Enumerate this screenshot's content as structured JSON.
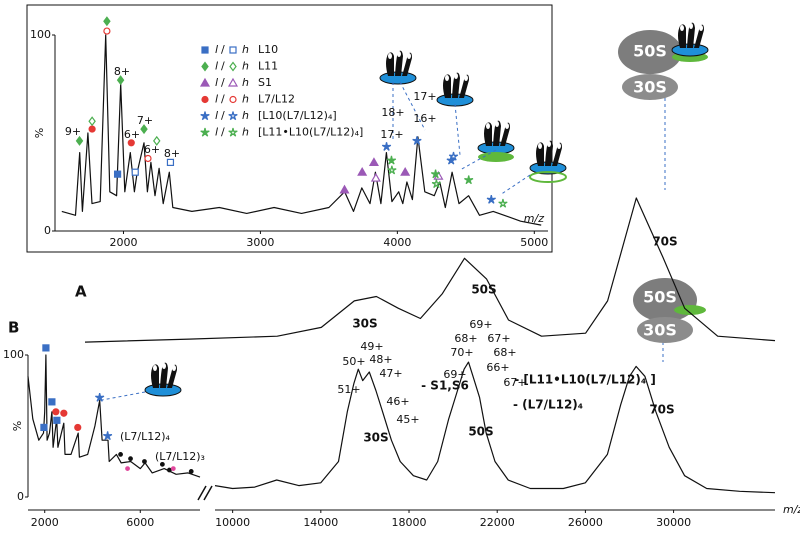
{
  "panel_labels": [
    "A",
    "B"
  ],
  "icons": [
    {
      "labels": [
        "50S",
        "30S"
      ]
    },
    {
      "labels": [
        "50S",
        "30S"
      ]
    }
  ],
  "chart_data": [
    {
      "type": "line",
      "x_label": "m/z",
      "y_label": "%",
      "xlim": [
        1500,
        5100
      ],
      "xticks": [
        2000,
        3000,
        4000,
        5000
      ],
      "ylim": [
        0,
        100
      ],
      "yticks": [
        0,
        100
      ],
      "color": "#111111",
      "x": [
        1550,
        1650,
        1680,
        1700,
        1740,
        1770,
        1830,
        1870,
        1900,
        1950,
        1980,
        2010,
        2050,
        2080,
        2100,
        2150,
        2175,
        2200,
        2230,
        2260,
        2290,
        2335,
        2360,
        2500,
        2700,
        2900,
        3100,
        3300,
        3500,
        3615,
        3680,
        3740,
        3800,
        3840,
        3880,
        3920,
        3960,
        4010,
        4040,
        4070,
        4110,
        4150,
        4200,
        4270,
        4310,
        4350,
        4400,
        4450,
        4520,
        4600,
        4700,
        4780,
        4900,
        5050
      ],
      "values": [
        10,
        8,
        40,
        10,
        50,
        14,
        15,
        100,
        20,
        18,
        75,
        20,
        40,
        20,
        30,
        45,
        20,
        35,
        18,
        32,
        14,
        30,
        12,
        10,
        12,
        9,
        12,
        9,
        12,
        20,
        10,
        22,
        14,
        30,
        14,
        40,
        15,
        20,
        14,
        25,
        16,
        48,
        20,
        18,
        25,
        12,
        30,
        14,
        18,
        8,
        10,
        8,
        5,
        3
      ],
      "legend": {
        "light": "l",
        "heavy": "h",
        "separator": "/"
      },
      "series": [
        {
          "name": "L10",
          "color": "#3a6fc4",
          "shape": "square",
          "light": {
            "x": [
              1957
            ],
            "values": [
              29
            ]
          },
          "heavy": {
            "x": [
              2086,
              2343
            ],
            "values": [
              30,
              35
            ]
          }
        },
        {
          "name": "L11",
          "color": "#4caf50",
          "shape": "diamond",
          "light": {
            "x": [
              1679,
              1879,
              1979,
              2150
            ],
            "values": [
              46,
              107,
              77,
              52
            ]
          },
          "heavy": {
            "x": [
              1771,
              2243
            ],
            "values": [
              56,
              46
            ]
          }
        },
        {
          "name": "S1",
          "color": "#9b59b6",
          "shape": "triangle",
          "light": {
            "x": [
              3614,
              3743,
              3829,
              4057
            ],
            "values": [
              21,
              30,
              35,
              30
            ]
          },
          "heavy": {
            "x": [
              3843,
              4300
            ],
            "values": [
              27,
              28
            ]
          }
        },
        {
          "name": "L7/L12",
          "color": "#e53935",
          "shape": "circle",
          "light": {
            "x": [
              1771,
              2057
            ],
            "values": [
              52,
              45
            ]
          },
          "heavy": {
            "x": [
              1879,
              2179
            ],
            "values": [
              102,
              37
            ]
          }
        },
        {
          "name": "[L10(L7/L12)₄]",
          "color": "#3a6fc4",
          "shape": "star",
          "light": {
            "x": [
              3921,
              4143,
              4393,
              4686
            ],
            "values": [
              43,
              46,
              36,
              16
            ]
          },
          "heavy": {
            "x": [
              4410
            ],
            "values": [
              38
            ]
          }
        },
        {
          "name": "[L11•L10(L7/L12)₄]",
          "color": "#4caf50",
          "shape": "star",
          "light": {
            "x": [
              3957,
              4279,
              4521
            ],
            "values": [
              36,
              29,
              26
            ]
          },
          "heavy": {
            "x": [
              3960,
              4285,
              4771
            ],
            "values": [
              31,
              24,
              14
            ]
          }
        }
      ],
      "annotations": [
        {
          "text": "9+"
        },
        {
          "text": "8+"
        },
        {
          "text": "7+"
        },
        {
          "text": "6+"
        },
        {
          "text": "6+"
        },
        {
          "text": "8+"
        },
        {
          "text": "18+"
        },
        {
          "text": "17+"
        },
        {
          "text": "17+"
        },
        {
          "text": "16+"
        }
      ]
    },
    {
      "type": "line",
      "xlim": [
        3270,
        34600
      ],
      "ylim": [
        0,
        100
      ],
      "color": "#111111",
      "x": [
        3270,
        8000,
        12000,
        14000,
        15500,
        16500,
        17500,
        18500,
        19500,
        20500,
        21500,
        22500,
        24000,
        26000,
        27000,
        28300,
        29500,
        30500,
        32000,
        34600
      ],
      "values": [
        2,
        4,
        6,
        12,
        30,
        33,
        25,
        18,
        35,
        59,
        45,
        17,
        6,
        8,
        30,
        100,
        60,
        25,
        6,
        3
      ],
      "annotations": [
        {
          "text": "30S"
        },
        {
          "text": "50S"
        },
        {
          "text": "70S"
        }
      ]
    },
    {
      "type": "line",
      "xlim": [
        1300,
        8500
      ],
      "xticks": [
        2000,
        6000
      ],
      "ylim": [
        0,
        100
      ],
      "yticks": [
        0,
        100
      ],
      "y_label": "%",
      "color": "#111111",
      "x": [
        1300,
        1500,
        1750,
        1950,
        2000,
        2050,
        2100,
        2200,
        2300,
        2350,
        2500,
        2550,
        2800,
        2850,
        3100,
        3400,
        3450,
        3800,
        4100,
        4300,
        4400,
        4650,
        4700,
        5000,
        5200,
        5600,
        6000,
        6200,
        6500,
        7000,
        7500,
        8000,
        8500
      ],
      "values": [
        85,
        55,
        40,
        45,
        60,
        100,
        40,
        45,
        60,
        35,
        55,
        35,
        52,
        30,
        30,
        45,
        28,
        30,
        50,
        68,
        40,
        40,
        25,
        30,
        24,
        25,
        20,
        24,
        17,
        20,
        16,
        17,
        14
      ],
      "points": [
        {
          "color": "#3a6fc4",
          "shape": "square",
          "x": [
            2050,
            1967,
            2300,
            2508
          ],
          "values": [
            105,
            49,
            67,
            54
          ]
        },
        {
          "color": "#e53935",
          "shape": "circle",
          "x": [
            2467,
            2800,
            3383
          ],
          "values": [
            60,
            59,
            49
          ]
        },
        {
          "color": "#3a6fc4",
          "shape": "star",
          "x": [
            4300,
            4633
          ],
          "values": [
            70,
            43
          ]
        },
        {
          "color": "#111111",
          "shape": "dot",
          "x": [
            5175,
            5592,
            6175,
            6925,
            7217,
            8133
          ],
          "values": [
            30,
            27,
            25,
            23,
            19,
            18
          ]
        },
        {
          "color": "#e0489c",
          "shape": "dot",
          "x": [
            5467,
            7383
          ],
          "values": [
            20,
            20
          ]
        }
      ],
      "annotations": [
        {
          "text": "(L7/L12)₄"
        },
        {
          "text": "(L7/L12)₃",
          "color": "#e0489c"
        }
      ]
    },
    {
      "type": "line",
      "xlim": [
        9200,
        34600
      ],
      "xticks": [
        10000,
        14000,
        18000,
        22000,
        26000,
        30000
      ],
      "ylim": [
        0,
        100
      ],
      "x_label": "m/z",
      "color": "#111111",
      "x": [
        9200,
        10000,
        11000,
        12000,
        13000,
        14000,
        14800,
        15200,
        15500,
        15700,
        15900,
        16200,
        16500,
        16800,
        17200,
        17600,
        18200,
        18800,
        19300,
        19800,
        20200,
        20500,
        20700,
        20900,
        21200,
        21500,
        21900,
        22500,
        23500,
        25000,
        26000,
        27000,
        27600,
        28000,
        28300,
        28700,
        29200,
        29800,
        30500,
        31500,
        33000,
        34600
      ],
      "values": [
        8,
        6,
        7,
        12,
        8,
        10,
        25,
        60,
        80,
        90,
        82,
        88,
        75,
        60,
        40,
        25,
        15,
        12,
        25,
        55,
        75,
        90,
        95,
        85,
        70,
        45,
        25,
        12,
        6,
        6,
        10,
        30,
        65,
        85,
        92,
        85,
        60,
        35,
        15,
        6,
        4,
        3
      ],
      "annotations": [
        {
          "text": "50+"
        },
        {
          "text": "49+"
        },
        {
          "text": "48+"
        },
        {
          "text": "47+"
        },
        {
          "text": "46+"
        },
        {
          "text": "45+"
        },
        {
          "text": "51+"
        },
        {
          "text": "- S1,S6"
        },
        {
          "text": "30S"
        },
        {
          "text": "69+"
        },
        {
          "text": "68+",
          "color": "#e0312b"
        },
        {
          "text": "67+",
          "color": "#e0312b"
        },
        {
          "text": "70+"
        },
        {
          "text": "68+"
        },
        {
          "text": "69+",
          "color": "#e0312b"
        },
        {
          "text": "66+",
          "color": "#e0312b"
        },
        {
          "text": "67+"
        },
        {
          "text": "- [L11•L10(L7/L12)₄ ]",
          "color": "#e0312b"
        },
        {
          "text": "- (L7/L12)₄"
        },
        {
          "text": "50S"
        },
        {
          "text": "70S"
        }
      ]
    }
  ]
}
